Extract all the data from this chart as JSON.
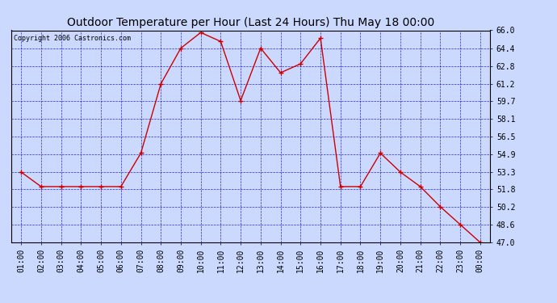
{
  "title": "Outdoor Temperature per Hour (Last 24 Hours) Thu May 18 00:00",
  "copyright": "Copyright 2006 Castronics.com",
  "hours": [
    "01:00",
    "02:00",
    "03:00",
    "04:00",
    "05:00",
    "06:00",
    "07:00",
    "08:00",
    "09:00",
    "10:00",
    "11:00",
    "12:00",
    "13:00",
    "14:00",
    "15:00",
    "16:00",
    "17:00",
    "18:00",
    "19:00",
    "20:00",
    "21:00",
    "22:00",
    "23:00",
    "00:00"
  ],
  "temps": [
    53.3,
    52.0,
    52.0,
    52.0,
    52.0,
    52.0,
    55.0,
    61.2,
    64.4,
    65.8,
    65.0,
    59.7,
    64.4,
    62.2,
    63.0,
    65.3,
    52.0,
    52.0,
    55.0,
    53.3,
    52.0,
    50.2,
    48.6,
    47.0
  ],
  "line_color": "#cc0000",
  "marker_color": "#cc0000",
  "bg_color": "#ccd9ff",
  "plot_bg": "#ccd9ff",
  "grid_color": "#0000cc",
  "axis_color": "#000000",
  "title_color": "#000000",
  "yticks": [
    47.0,
    48.6,
    50.2,
    51.8,
    53.3,
    54.9,
    56.5,
    58.1,
    59.7,
    61.2,
    62.8,
    64.4,
    66.0
  ],
  "ymin": 47.0,
  "ymax": 66.0,
  "title_fontsize": 10,
  "tick_fontsize": 7,
  "copyright_fontsize": 6
}
